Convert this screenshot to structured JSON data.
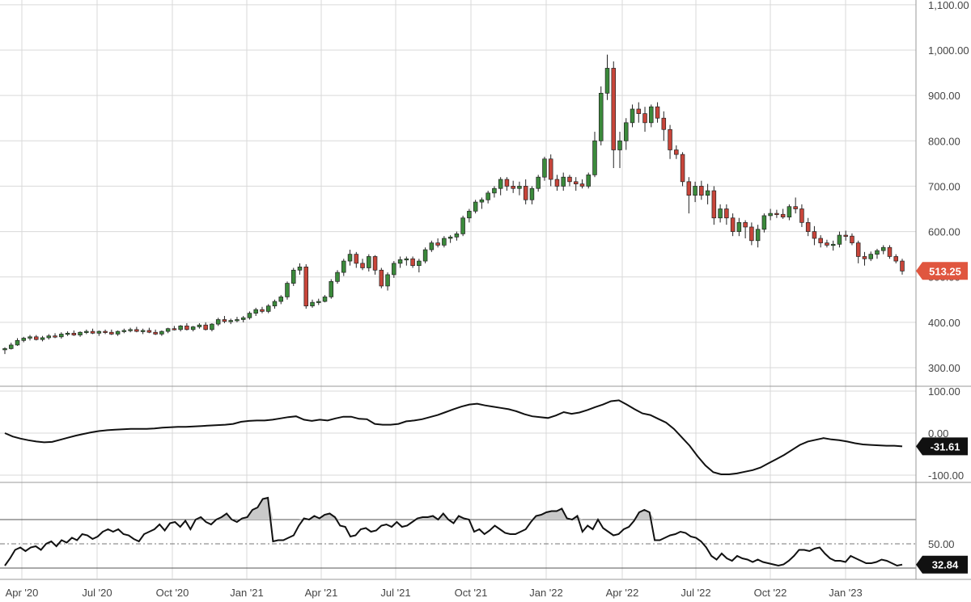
{
  "chart_data": {
    "type": "candlestick",
    "x_ticks": [
      "Apr '20",
      "Jul '20",
      "Oct '20",
      "Jan '21",
      "Apr '21",
      "Jul '21",
      "Oct '21",
      "Jan '22",
      "Apr '22",
      "Jul '22",
      "Oct '22",
      "Jan '23"
    ],
    "price": {
      "y_ticks": [
        "300.00",
        "400.00",
        "500.00",
        "600.00",
        "700.00",
        "800.00",
        "900.00",
        "1,000.00",
        "1,100.00"
      ],
      "ylim": [
        280,
        1100
      ],
      "last_value": "513.25",
      "last_color": "#e0563f",
      "up_color": "#3b8a3b",
      "down_color": "#c8453a",
      "candles": [
        [
          340,
          345,
          330,
          342
        ],
        [
          342,
          355,
          340,
          350
        ],
        [
          350,
          365,
          348,
          360
        ],
        [
          360,
          368,
          356,
          365
        ],
        [
          365,
          372,
          360,
          368
        ],
        [
          368,
          372,
          360,
          362
        ],
        [
          362,
          370,
          358,
          366
        ],
        [
          366,
          374,
          362,
          370
        ],
        [
          370,
          376,
          365,
          368
        ],
        [
          368,
          378,
          364,
          374
        ],
        [
          374,
          380,
          370,
          376
        ],
        [
          376,
          382,
          370,
          372
        ],
        [
          372,
          380,
          368,
          378
        ],
        [
          378,
          384,
          374,
          380
        ],
        [
          380,
          386,
          374,
          376
        ],
        [
          376,
          382,
          370,
          380
        ],
        [
          380,
          384,
          374,
          378
        ],
        [
          378,
          384,
          372,
          374
        ],
        [
          374,
          382,
          370,
          380
        ],
        [
          380,
          386,
          376,
          382
        ],
        [
          382,
          388,
          378,
          384
        ],
        [
          384,
          390,
          378,
          380
        ],
        [
          380,
          386,
          374,
          382
        ],
        [
          382,
          388,
          376,
          378
        ],
        [
          378,
          384,
          372,
          374
        ],
        [
          374,
          382,
          370,
          380
        ],
        [
          380,
          388,
          376,
          386
        ],
        [
          386,
          392,
          382,
          384
        ],
        [
          384,
          394,
          380,
          392
        ],
        [
          392,
          398,
          382,
          384
        ],
        [
          384,
          392,
          380,
          390
        ],
        [
          390,
          398,
          386,
          394
        ],
        [
          394,
          400,
          382,
          384
        ],
        [
          384,
          398,
          380,
          396
        ],
        [
          396,
          410,
          392,
          406
        ],
        [
          406,
          414,
          398,
          402
        ],
        [
          402,
          408,
          396,
          404
        ],
        [
          404,
          412,
          400,
          406
        ],
        [
          406,
          414,
          400,
          410
        ],
        [
          410,
          424,
          406,
          420
        ],
        [
          420,
          432,
          414,
          428
        ],
        [
          428,
          434,
          420,
          424
        ],
        [
          424,
          440,
          420,
          436
        ],
        [
          436,
          450,
          430,
          446
        ],
        [
          446,
          460,
          440,
          456
        ],
        [
          456,
          490,
          450,
          486
        ],
        [
          486,
          520,
          480,
          515
        ],
        [
          515,
          530,
          505,
          522
        ],
        [
          522,
          528,
          430,
          436
        ],
        [
          436,
          450,
          432,
          444
        ],
        [
          444,
          452,
          438,
          446
        ],
        [
          446,
          460,
          444,
          456
        ],
        [
          456,
          495,
          452,
          490
        ],
        [
          490,
          515,
          485,
          510
        ],
        [
          510,
          540,
          502,
          535
        ],
        [
          535,
          560,
          525,
          550
        ],
        [
          550,
          555,
          520,
          530
        ],
        [
          530,
          540,
          515,
          520
        ],
        [
          520,
          550,
          512,
          545
        ],
        [
          545,
          548,
          505,
          515
        ],
        [
          515,
          520,
          475,
          480
        ],
        [
          480,
          510,
          470,
          505
        ],
        [
          505,
          535,
          498,
          530
        ],
        [
          530,
          545,
          520,
          538
        ],
        [
          538,
          545,
          525,
          540
        ],
        [
          540,
          545,
          520,
          525
        ],
        [
          525,
          540,
          510,
          535
        ],
        [
          535,
          565,
          530,
          560
        ],
        [
          560,
          580,
          555,
          575
        ],
        [
          575,
          585,
          565,
          570
        ],
        [
          570,
          590,
          565,
          585
        ],
        [
          585,
          592,
          575,
          588
        ],
        [
          588,
          600,
          580,
          595
        ],
        [
          595,
          635,
          590,
          630
        ],
        [
          630,
          650,
          620,
          645
        ],
        [
          645,
          670,
          640,
          665
        ],
        [
          665,
          675,
          650,
          670
        ],
        [
          670,
          690,
          662,
          685
        ],
        [
          685,
          700,
          675,
          695
        ],
        [
          695,
          720,
          680,
          715
        ],
        [
          715,
          720,
          690,
          700
        ],
        [
          700,
          712,
          685,
          695
        ],
        [
          695,
          710,
          680,
          700
        ],
        [
          700,
          715,
          660,
          670
        ],
        [
          670,
          700,
          660,
          695
        ],
        [
          695,
          725,
          688,
          720
        ],
        [
          720,
          765,
          712,
          760
        ],
        [
          760,
          770,
          700,
          715
        ],
        [
          715,
          725,
          690,
          700
        ],
        [
          700,
          730,
          690,
          720
        ],
        [
          720,
          725,
          700,
          710
        ],
        [
          710,
          720,
          690,
          705
        ],
        [
          705,
          715,
          695,
          700
        ],
        [
          700,
          730,
          695,
          725
        ],
        [
          725,
          820,
          720,
          800
        ],
        [
          800,
          920,
          790,
          905
        ],
        [
          905,
          990,
          890,
          960
        ],
        [
          960,
          975,
          740,
          780
        ],
        [
          780,
          820,
          740,
          800
        ],
        [
          800,
          850,
          780,
          840
        ],
        [
          840,
          880,
          830,
          870
        ],
        [
          870,
          885,
          840,
          860
        ],
        [
          860,
          875,
          820,
          840
        ],
        [
          840,
          880,
          830,
          875
        ],
        [
          875,
          885,
          840,
          850
        ],
        [
          850,
          865,
          800,
          825
        ],
        [
          825,
          835,
          760,
          780
        ],
        [
          780,
          790,
          760,
          770
        ],
        [
          770,
          775,
          700,
          710
        ],
        [
          710,
          720,
          640,
          680
        ],
        [
          680,
          710,
          665,
          700
        ],
        [
          700,
          712,
          670,
          680
        ],
        [
          680,
          705,
          660,
          690
        ],
        [
          690,
          700,
          615,
          630
        ],
        [
          630,
          660,
          620,
          650
        ],
        [
          650,
          660,
          615,
          630
        ],
        [
          630,
          640,
          590,
          600
        ],
        [
          600,
          630,
          590,
          620
        ],
        [
          620,
          625,
          585,
          610
        ],
        [
          610,
          620,
          570,
          580
        ],
        [
          580,
          615,
          565,
          605
        ],
        [
          605,
          640,
          598,
          635
        ],
        [
          635,
          650,
          625,
          640
        ],
        [
          640,
          648,
          630,
          638
        ],
        [
          638,
          650,
          628,
          632
        ],
        [
          632,
          660,
          625,
          655
        ],
        [
          655,
          675,
          640,
          650
        ],
        [
          650,
          660,
          610,
          620
        ],
        [
          620,
          630,
          590,
          600
        ],
        [
          600,
          612,
          570,
          585
        ],
        [
          585,
          592,
          565,
          575
        ],
        [
          575,
          582,
          565,
          570
        ],
        [
          570,
          580,
          558,
          572
        ],
        [
          572,
          600,
          565,
          592
        ],
        [
          592,
          602,
          580,
          590
        ],
        [
          590,
          596,
          570,
          575
        ],
        [
          575,
          580,
          530,
          545
        ],
        [
          545,
          555,
          525,
          540
        ],
        [
          540,
          556,
          535,
          550
        ],
        [
          550,
          562,
          540,
          558
        ],
        [
          558,
          570,
          550,
          565
        ],
        [
          565,
          570,
          540,
          545
        ],
        [
          545,
          550,
          530,
          535
        ],
        [
          535,
          540,
          505,
          513
        ]
      ]
    },
    "oscillator": {
      "y_ticks": [
        "-100.00",
        "0.00",
        "100.00"
      ],
      "ylim": [
        -130,
        125
      ],
      "last_value": "-31.61",
      "values": [
        0,
        -8,
        -13,
        -17,
        -20,
        -22,
        -21,
        -16,
        -11,
        -6,
        -2,
        2,
        5,
        7,
        8,
        9,
        10,
        10,
        10,
        11,
        13,
        14,
        15,
        15,
        16,
        17,
        18,
        19,
        20,
        22,
        27,
        29,
        30,
        30,
        32,
        35,
        38,
        40,
        32,
        29,
        32,
        30,
        35,
        39,
        39,
        34,
        33,
        22,
        20,
        20,
        22,
        28,
        30,
        33,
        38,
        43,
        50,
        57,
        63,
        68,
        70,
        66,
        63,
        60,
        57,
        52,
        45,
        40,
        38,
        36,
        42,
        50,
        46,
        49,
        55,
        62,
        68,
        76,
        78,
        68,
        57,
        47,
        43,
        34,
        25,
        10,
        -10,
        -30,
        -55,
        -77,
        -93,
        -98,
        -98,
        -96,
        -92,
        -88,
        -82,
        -72,
        -62,
        -52,
        -40,
        -28,
        -20,
        -16,
        -12,
        -15,
        -17,
        -20,
        -24,
        -27,
        -28,
        -29,
        -30,
        -30,
        -31.61
      ]
    },
    "momentum": {
      "y_ticks": [
        "50.00"
      ],
      "ylim": [
        0,
        100
      ],
      "upper_line": 70,
      "mid_line": 50,
      "lower_line": 30,
      "last_value": "32.84",
      "values": [
        32,
        38,
        45,
        47,
        44,
        47,
        48,
        45,
        50,
        52,
        48,
        53,
        51,
        55,
        53,
        58,
        57,
        54,
        56,
        60,
        62,
        60,
        62,
        58,
        57,
        54,
        52,
        58,
        60,
        62,
        66,
        61,
        67,
        68,
        64,
        69,
        62,
        70,
        72,
        68,
        66,
        70,
        72,
        75,
        70,
        68,
        71,
        72,
        78,
        80,
        87,
        88,
        52,
        53,
        53,
        55,
        57,
        65,
        71,
        70,
        73,
        71,
        74,
        75,
        72,
        65,
        64,
        56,
        57,
        62,
        63,
        60,
        61,
        65,
        66,
        64,
        68,
        64,
        65,
        68,
        71,
        72,
        72,
        73,
        70,
        75,
        70,
        67,
        73,
        71,
        70,
        60,
        62,
        58,
        61,
        65,
        62,
        59,
        58,
        58,
        60,
        62,
        68,
        73,
        74,
        76,
        77,
        77,
        79,
        71,
        70,
        73,
        60,
        65,
        62,
        70,
        63,
        60,
        57,
        58,
        62,
        64,
        69,
        76,
        78,
        76,
        53,
        53,
        55,
        57,
        58,
        60,
        59,
        56,
        55,
        52,
        47,
        40,
        37,
        42,
        38,
        36,
        40,
        38,
        37,
        35,
        37,
        35,
        34,
        33,
        32,
        33,
        36,
        40,
        45,
        45,
        44,
        46,
        47,
        42,
        38,
        36,
        36,
        35,
        40,
        38,
        36,
        34,
        34,
        35,
        37,
        36,
        34,
        32,
        32.84
      ]
    }
  }
}
